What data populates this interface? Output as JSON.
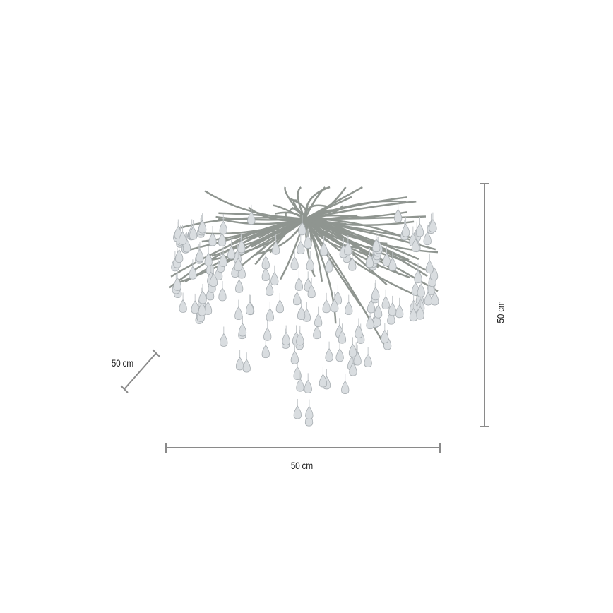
{
  "product": {
    "subject": "crystal-drop-chandelier",
    "colors": {
      "dimension_line": "#8a8a8a",
      "branches": "#8f9590",
      "drops": "#d9dde0"
    }
  },
  "dimensions": {
    "depth_label": "50 cm",
    "width_label": "50 cm",
    "height_label": "50 cm"
  }
}
